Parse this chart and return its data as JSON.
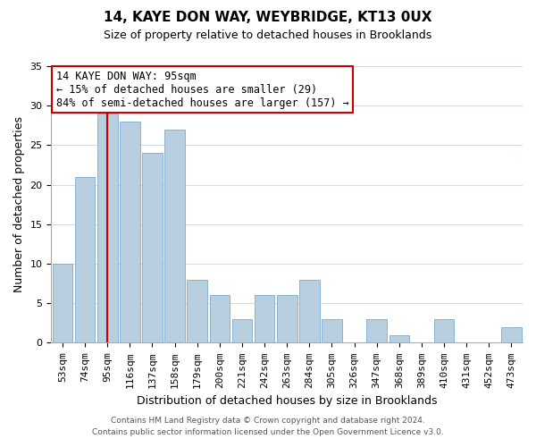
{
  "title": "14, KAYE DON WAY, WEYBRIDGE, KT13 0UX",
  "subtitle": "Size of property relative to detached houses in Brooklands",
  "xlabel": "Distribution of detached houses by size in Brooklands",
  "ylabel": "Number of detached properties",
  "categories": [
    "53sqm",
    "74sqm",
    "95sqm",
    "116sqm",
    "137sqm",
    "158sqm",
    "179sqm",
    "200sqm",
    "221sqm",
    "242sqm",
    "263sqm",
    "284sqm",
    "305sqm",
    "326sqm",
    "347sqm",
    "368sqm",
    "389sqm",
    "410sqm",
    "431sqm",
    "452sqm",
    "473sqm"
  ],
  "values": [
    10,
    21,
    29,
    28,
    24,
    27,
    8,
    6,
    3,
    6,
    6,
    8,
    3,
    0,
    3,
    1,
    0,
    3,
    0,
    0,
    2
  ],
  "bar_color": "#b8cfe0",
  "bar_edge_color": "#7baad0",
  "vline_color": "#cc0000",
  "vline_index": 2,
  "ylim": [
    0,
    35
  ],
  "yticks": [
    0,
    5,
    10,
    15,
    20,
    25,
    30,
    35
  ],
  "annotation_title": "14 KAYE DON WAY: 95sqm",
  "annotation_line1": "← 15% of detached houses are smaller (29)",
  "annotation_line2": "84% of semi-detached houses are larger (157) →",
  "annotation_box_facecolor": "#ffffff",
  "annotation_box_edgecolor": "#cc0000",
  "footer_line1": "Contains HM Land Registry data © Crown copyright and database right 2024.",
  "footer_line2": "Contains public sector information licensed under the Open Government Licence v3.0.",
  "background_color": "#ffffff",
  "grid_color": "#d0dce8",
  "title_fontsize": 11,
  "subtitle_fontsize": 9,
  "ylabel_fontsize": 9,
  "xlabel_fontsize": 9,
  "tick_fontsize": 8,
  "annot_fontsize": 8.5,
  "footer_fontsize": 6.5
}
